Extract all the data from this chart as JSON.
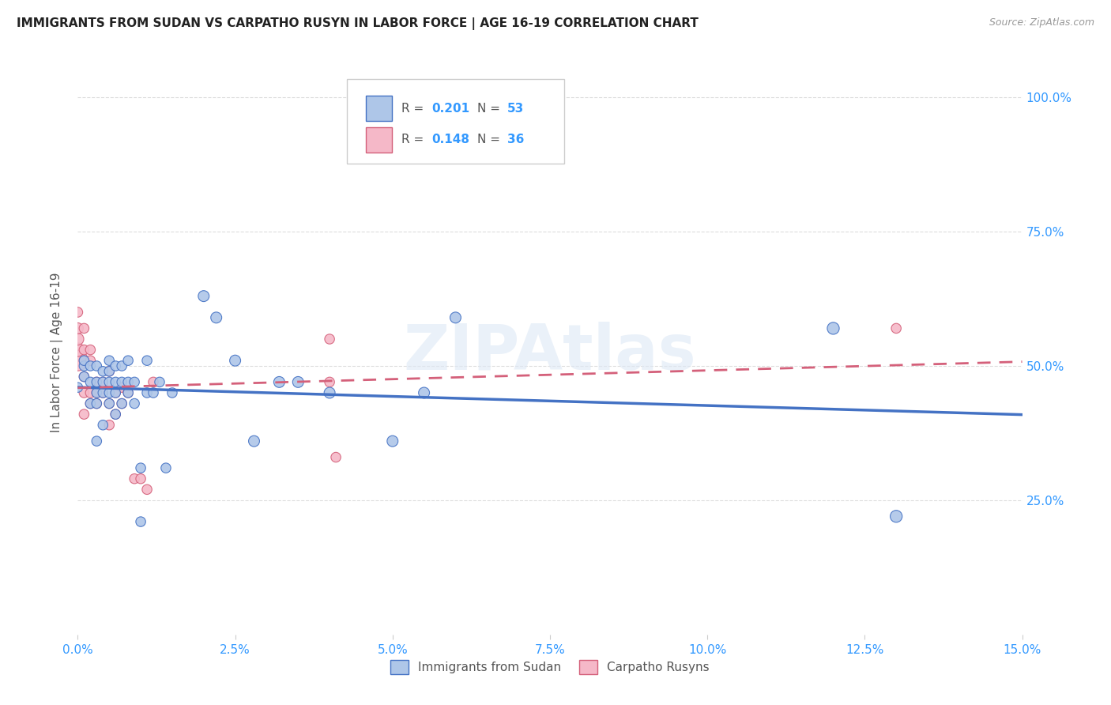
{
  "title": "IMMIGRANTS FROM SUDAN VS CARPATHO RUSYN IN LABOR FORCE | AGE 16-19 CORRELATION CHART",
  "source": "Source: ZipAtlas.com",
  "ylabel": "In Labor Force | Age 16-19",
  "xlim": [
    0.0,
    0.15
  ],
  "ylim": [
    0.0,
    1.05
  ],
  "xtick_labels": [
    "0.0%",
    "2.5%",
    "5.0%",
    "7.5%",
    "10.0%",
    "12.5%",
    "15.0%"
  ],
  "xtick_vals": [
    0.0,
    0.025,
    0.05,
    0.075,
    0.1,
    0.125,
    0.15
  ],
  "ytick_vals": [
    0.25,
    0.5,
    0.75,
    1.0
  ],
  "ytick_labels": [
    "25.0%",
    "50.0%",
    "75.0%",
    "100.0%"
  ],
  "color_sudan": "#aec6e8",
  "color_rusyn": "#f5b8c8",
  "color_line_sudan": "#4472c4",
  "color_line_rusyn": "#d4607a",
  "sudan_x": [
    0.0,
    0.001,
    0.001,
    0.001,
    0.002,
    0.002,
    0.002,
    0.003,
    0.003,
    0.003,
    0.003,
    0.003,
    0.004,
    0.004,
    0.004,
    0.004,
    0.005,
    0.005,
    0.005,
    0.005,
    0.005,
    0.006,
    0.006,
    0.006,
    0.006,
    0.007,
    0.007,
    0.007,
    0.008,
    0.008,
    0.008,
    0.009,
    0.009,
    0.01,
    0.01,
    0.011,
    0.011,
    0.012,
    0.013,
    0.014,
    0.015,
    0.02,
    0.022,
    0.025,
    0.028,
    0.032,
    0.035,
    0.04,
    0.05,
    0.055,
    0.06,
    0.12,
    0.13
  ],
  "sudan_y": [
    0.46,
    0.48,
    0.5,
    0.51,
    0.43,
    0.47,
    0.5,
    0.36,
    0.43,
    0.45,
    0.47,
    0.5,
    0.39,
    0.45,
    0.47,
    0.49,
    0.43,
    0.45,
    0.47,
    0.49,
    0.51,
    0.41,
    0.45,
    0.47,
    0.5,
    0.43,
    0.47,
    0.5,
    0.45,
    0.47,
    0.51,
    0.43,
    0.47,
    0.21,
    0.31,
    0.45,
    0.51,
    0.45,
    0.47,
    0.31,
    0.45,
    0.63,
    0.59,
    0.51,
    0.36,
    0.47,
    0.47,
    0.45,
    0.36,
    0.45,
    0.59,
    0.57,
    0.22
  ],
  "sudan_size": [
    80,
    80,
    80,
    80,
    80,
    80,
    80,
    80,
    80,
    80,
    80,
    80,
    80,
    80,
    80,
    80,
    80,
    80,
    80,
    80,
    80,
    80,
    80,
    80,
    80,
    80,
    80,
    80,
    80,
    80,
    80,
    80,
    80,
    80,
    80,
    80,
    80,
    80,
    80,
    80,
    80,
    100,
    100,
    100,
    100,
    100,
    100,
    100,
    100,
    100,
    100,
    120,
    120
  ],
  "rusyn_x": [
    0.0,
    0.0,
    0.0,
    0.0,
    0.0,
    0.001,
    0.001,
    0.001,
    0.001,
    0.001,
    0.001,
    0.002,
    0.002,
    0.002,
    0.002,
    0.003,
    0.003,
    0.003,
    0.004,
    0.004,
    0.005,
    0.005,
    0.005,
    0.006,
    0.006,
    0.007,
    0.007,
    0.008,
    0.009,
    0.01,
    0.011,
    0.012,
    0.04,
    0.04,
    0.041,
    0.13
  ],
  "rusyn_y": [
    0.51,
    0.53,
    0.55,
    0.57,
    0.6,
    0.41,
    0.45,
    0.48,
    0.51,
    0.53,
    0.57,
    0.43,
    0.45,
    0.51,
    0.53,
    0.43,
    0.45,
    0.47,
    0.45,
    0.47,
    0.39,
    0.43,
    0.49,
    0.41,
    0.45,
    0.43,
    0.46,
    0.45,
    0.29,
    0.29,
    0.27,
    0.47,
    0.55,
    0.47,
    0.33,
    0.57
  ],
  "rusyn_size": [
    350,
    150,
    120,
    100,
    80,
    80,
    80,
    80,
    80,
    80,
    80,
    80,
    80,
    80,
    80,
    80,
    80,
    80,
    80,
    80,
    80,
    80,
    80,
    80,
    80,
    80,
    80,
    80,
    80,
    80,
    80,
    80,
    80,
    80,
    80,
    80
  ],
  "watermark": "ZIPAtlas",
  "background_color": "#ffffff",
  "grid_color": "#dddddd"
}
